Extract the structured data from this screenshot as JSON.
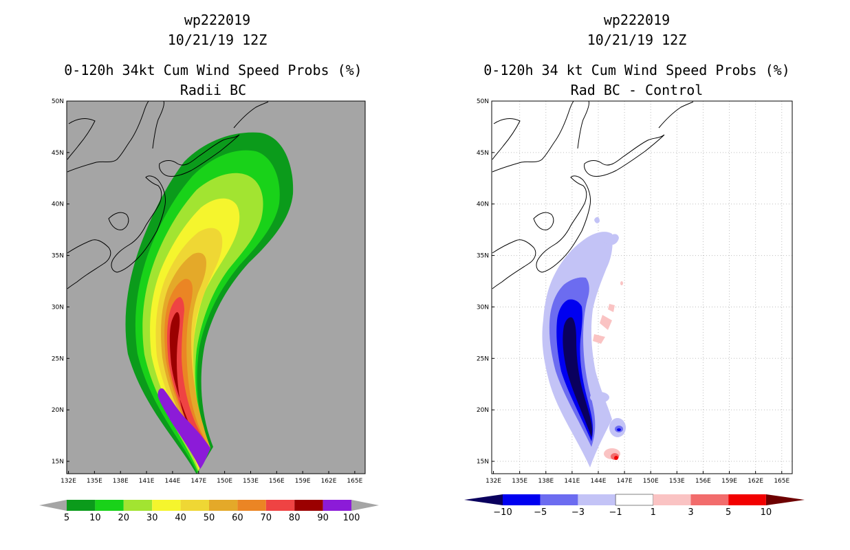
{
  "colors": {
    "land_bg": "#a5a5a5",
    "coast": "#000000",
    "grid": "#bdbdbd",
    "prob": [
      "#0b9b1b",
      "#19d219",
      "#a2e431",
      "#f5f52d",
      "#efd734",
      "#e4a929",
      "#eb8524",
      "#ef4343",
      "#9b0000",
      "#8c1bd8"
    ],
    "diff": [
      "#0a005e",
      "#0000f0",
      "#6c6cf0",
      "#c3c3f6",
      "#ffffff",
      "#fac3c3",
      "#f26c6c",
      "#f20000",
      "#6e0000"
    ]
  },
  "chart_data": [
    {
      "type": "heatmap",
      "title_lines": [
        "wp222019",
        "10/21/19 12Z",
        "0-120h 34kt Cum Wind Speed Probs (%)",
        "Radii BC"
      ],
      "x_ticks": [
        "132E",
        "135E",
        "138E",
        "141E",
        "144E",
        "147E",
        "150E",
        "153E",
        "156E",
        "159E",
        "162E",
        "165E"
      ],
      "y_ticks": [
        "15N",
        "20N",
        "25N",
        "30N",
        "35N",
        "40N",
        "45N",
        "50N"
      ],
      "xlim": [
        131.8,
        166.2
      ],
      "ylim": [
        13.8,
        50
      ],
      "grid": false,
      "colorbar": {
        "labels": [
          "5",
          "10",
          "20",
          "30",
          "40",
          "50",
          "60",
          "70",
          "80",
          "90",
          "100"
        ],
        "unit": "%"
      }
    },
    {
      "type": "heatmap",
      "title_lines": [
        "wp222019",
        "10/21/19 12Z",
        "0-120h 34 kt Cum Wind Speed Probs (%)",
        "Rad BC - Control"
      ],
      "x_ticks": [
        "132E",
        "135E",
        "138E",
        "141E",
        "144E",
        "147E",
        "150E",
        "153E",
        "156E",
        "159E",
        "162E",
        "165E"
      ],
      "y_ticks": [
        "15N",
        "20N",
        "25N",
        "30N",
        "35N",
        "40N",
        "45N",
        "50N"
      ],
      "xlim": [
        131.8,
        166.2
      ],
      "ylim": [
        13.8,
        50
      ],
      "grid": true,
      "colorbar": {
        "labels": [
          "-10",
          "-5",
          "-3",
          "-1",
          "1",
          "3",
          "5",
          "10"
        ],
        "unit": "%"
      }
    }
  ]
}
